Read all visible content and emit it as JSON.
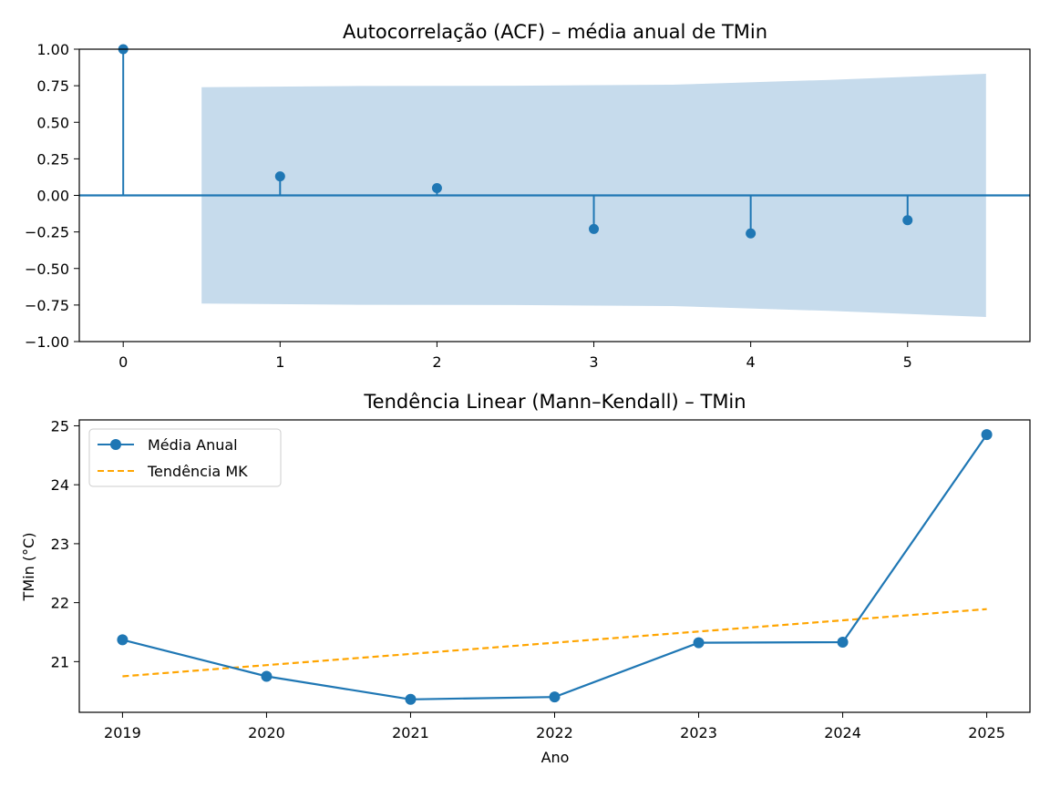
{
  "colors": {
    "series": "#1f77b4",
    "trend": "#ffa500",
    "confidence_band": "#c6dbec",
    "axes": "#000000",
    "background": "#ffffff"
  },
  "chart_data": [
    {
      "type": "stem",
      "title": "Autocorrelação (ACF) – média anual de TMin",
      "xlabel": "",
      "ylabel": "",
      "xlim": [
        -0.28,
        5.78
      ],
      "ylim": [
        -1.0,
        1.0
      ],
      "x_ticks": [
        0,
        1,
        2,
        3,
        4,
        5
      ],
      "y_ticks": [
        1.0,
        0.75,
        0.5,
        0.25,
        0.0,
        -0.25,
        -0.5,
        -0.75,
        -1.0
      ],
      "y_tick_labels": [
        "1.00",
        "0.75",
        "0.50",
        "0.25",
        "0.00",
        "−0.25",
        "−0.50",
        "−0.75",
        "−1.00"
      ],
      "lags": [
        0,
        1,
        2,
        3,
        4,
        5
      ],
      "values": [
        1.0,
        0.13,
        0.05,
        -0.23,
        -0.26,
        -0.17
      ],
      "confidence_band": {
        "x": [
          0.5,
          1.5,
          2.5,
          3.5,
          4.5,
          5.5
        ],
        "upper": [
          0.74,
          0.748,
          0.75,
          0.757,
          0.79,
          0.832
        ],
        "lower": [
          -0.74,
          -0.748,
          -0.75,
          -0.757,
          -0.79,
          -0.832
        ]
      },
      "zero_line": true,
      "grid": false
    },
    {
      "type": "line",
      "title": "Tendência Linear (Mann–Kendall) – TMin",
      "xlabel": "Ano",
      "ylabel": "TMin (°C)",
      "xlim": [
        2018.7,
        2025.3
      ],
      "ylim": [
        20.14,
        25.1
      ],
      "x_ticks": [
        2019,
        2020,
        2021,
        2022,
        2023,
        2024,
        2025
      ],
      "x_tick_labels": [
        "2019",
        "2020",
        "2021",
        "2022",
        "2023",
        "2024",
        "2025"
      ],
      "y_ticks": [
        21,
        22,
        23,
        24,
        25
      ],
      "y_tick_labels": [
        "21",
        "22",
        "23",
        "24",
        "25"
      ],
      "x": [
        2019,
        2020,
        2021,
        2022,
        2023,
        2024,
        2025
      ],
      "series": [
        {
          "name": "Média Anual",
          "values": [
            21.37,
            20.75,
            20.36,
            20.4,
            21.32,
            21.33,
            24.85
          ],
          "style": "solid-marker"
        },
        {
          "name": "Tendência MK",
          "values": [
            20.75,
            20.94,
            21.13,
            21.32,
            21.51,
            21.7,
            21.89
          ],
          "style": "dashed"
        }
      ],
      "legend_position": "top-left",
      "grid": false
    }
  ]
}
